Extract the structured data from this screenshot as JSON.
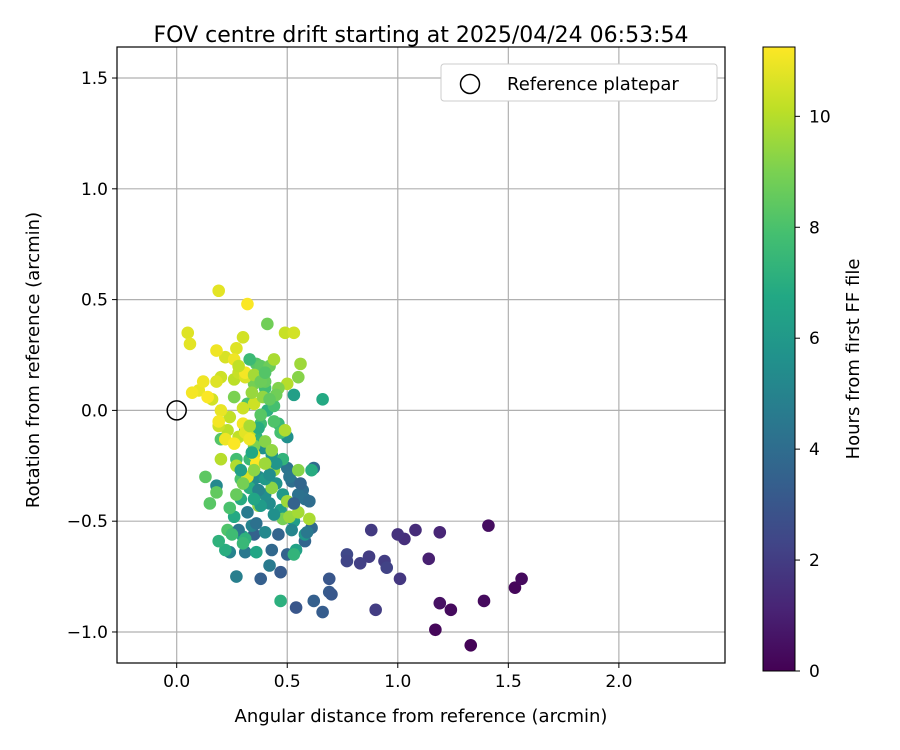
{
  "chart_data": {
    "type": "scatter",
    "title": "FOV centre drift starting at 2025/04/24 06:53:54",
    "xlabel": "Angular distance from reference (arcmin)",
    "ylabel": "Rotation from reference (arcmin)",
    "xlim": [
      -0.27,
      2.48
    ],
    "ylim": [
      -1.14,
      1.64
    ],
    "xticks": [
      0.0,
      0.5,
      1.0,
      1.5,
      2.0
    ],
    "xtick_labels": [
      "0.0",
      "0.5",
      "1.0",
      "1.5",
      "2.0"
    ],
    "yticks": [
      -1.0,
      -0.5,
      0.0,
      0.5,
      1.0,
      1.5
    ],
    "ytick_labels": [
      "−1.0",
      "−0.5",
      "0.0",
      "0.5",
      "1.0",
      "1.5"
    ],
    "grid": true,
    "legend": {
      "position": "top-right",
      "label": "Reference platepar",
      "marker": "open-circle"
    },
    "reference_point": {
      "x": 0.0,
      "y": 0.0
    },
    "colorbar": {
      "label": "Hours from first FF file",
      "range": [
        0,
        11.25
      ],
      "ticks": [
        0,
        2,
        4,
        6,
        8,
        10
      ],
      "tick_labels": [
        "0",
        "2",
        "4",
        "6",
        "8",
        "10"
      ],
      "colormap": "viridis"
    },
    "points": [
      [
        1.33,
        -1.06,
        0.1
      ],
      [
        1.17,
        -0.99,
        0.2
      ],
      [
        1.24,
        -0.9,
        0.3
      ],
      [
        1.19,
        -0.87,
        0.5
      ],
      [
        1.39,
        -0.86,
        0.3
      ],
      [
        1.53,
        -0.8,
        0.2
      ],
      [
        1.56,
        -0.76,
        0.3
      ],
      [
        1.41,
        -0.52,
        0.4
      ],
      [
        1.14,
        -0.67,
        1.0
      ],
      [
        1.19,
        -0.55,
        1.2
      ],
      [
        1.08,
        -0.54,
        1.4
      ],
      [
        1.03,
        -0.58,
        1.5
      ],
      [
        1.0,
        -0.56,
        1.6
      ],
      [
        1.01,
        -0.76,
        1.8
      ],
      [
        0.88,
        -0.54,
        1.9
      ],
      [
        0.94,
        -0.68,
        2.0
      ],
      [
        0.95,
        -0.71,
        2.2
      ],
      [
        0.87,
        -0.66,
        2.0
      ],
      [
        0.83,
        -0.69,
        2.1
      ],
      [
        0.77,
        -0.65,
        2.4
      ],
      [
        0.77,
        -0.68,
        2.3
      ],
      [
        0.9,
        -0.9,
        2.0
      ],
      [
        0.69,
        -0.76,
        3.0
      ],
      [
        0.69,
        -0.82,
        3.2
      ],
      [
        0.7,
        -0.83,
        3.1
      ],
      [
        0.62,
        -0.86,
        3.4
      ],
      [
        0.66,
        -0.91,
        3.3
      ],
      [
        0.54,
        -0.89,
        3.0
      ],
      [
        0.47,
        -0.73,
        3.2
      ],
      [
        0.38,
        -0.76,
        3.4
      ],
      [
        0.35,
        -0.56,
        3.5
      ],
      [
        0.5,
        -0.65,
        3.6
      ],
      [
        0.61,
        -0.53,
        3.8
      ],
      [
        0.58,
        -0.59,
        3.7
      ],
      [
        0.62,
        -0.26,
        3.9
      ],
      [
        0.57,
        -0.36,
        4.0
      ],
      [
        0.58,
        -0.4,
        4.2
      ],
      [
        0.52,
        -0.32,
        4.1
      ],
      [
        0.5,
        -0.26,
        4.3
      ],
      [
        0.51,
        -0.3,
        4.4
      ],
      [
        0.55,
        -0.38,
        4.2
      ],
      [
        0.42,
        -0.7,
        4.6
      ],
      [
        0.31,
        -0.64,
        4.5
      ],
      [
        0.27,
        -0.75,
        4.8
      ],
      [
        0.24,
        -0.64,
        5.0
      ],
      [
        0.18,
        -0.34,
        5.2
      ],
      [
        0.34,
        -0.52,
        5.0
      ],
      [
        0.4,
        -0.55,
        5.2
      ],
      [
        0.42,
        -0.42,
        5.4
      ],
      [
        0.4,
        -0.38,
        5.5
      ],
      [
        0.37,
        -0.3,
        5.3
      ],
      [
        0.39,
        -0.17,
        5.6
      ],
      [
        0.35,
        -0.31,
        5.4
      ],
      [
        0.43,
        -0.2,
        5.8
      ],
      [
        0.5,
        -0.12,
        5.6
      ],
      [
        0.45,
        -0.33,
        5.7
      ],
      [
        0.48,
        -0.38,
        6.0
      ],
      [
        0.53,
        -0.5,
        6.2
      ],
      [
        0.58,
        -0.56,
        5.9
      ],
      [
        0.54,
        -0.63,
        6.4
      ],
      [
        0.47,
        -0.45,
        6.2
      ],
      [
        0.36,
        -0.64,
        6.6
      ],
      [
        0.3,
        -0.57,
        6.5
      ],
      [
        0.26,
        -0.48,
        6.8
      ],
      [
        0.29,
        -0.4,
        6.9
      ],
      [
        0.33,
        -0.35,
        7.0
      ],
      [
        0.22,
        -0.63,
        7.0
      ],
      [
        0.19,
        -0.59,
        7.2
      ],
      [
        0.47,
        -0.86,
        7.1
      ],
      [
        0.53,
        -0.65,
        7.3
      ],
      [
        0.61,
        -0.27,
        6.9
      ],
      [
        0.53,
        0.07,
        6.3
      ],
      [
        0.66,
        0.05,
        6.8
      ],
      [
        0.41,
        0.0,
        7.1
      ],
      [
        0.36,
        -0.12,
        7.2
      ],
      [
        0.31,
        -0.09,
        7.4
      ],
      [
        0.46,
        -0.06,
        7.5
      ],
      [
        0.48,
        -0.22,
        7.3
      ],
      [
        0.33,
        -0.22,
        7.6
      ],
      [
        0.38,
        -0.06,
        7.7
      ],
      [
        0.4,
        0.1,
        7.8
      ],
      [
        0.44,
        0.02,
        7.9
      ],
      [
        0.32,
        0.03,
        8.0
      ],
      [
        0.27,
        -0.22,
        7.8
      ],
      [
        0.29,
        -0.31,
        8.0
      ],
      [
        0.23,
        -0.54,
        8.1
      ],
      [
        0.2,
        -0.13,
        8.2
      ],
      [
        0.15,
        -0.42,
        8.3
      ],
      [
        0.13,
        -0.3,
        8.4
      ],
      [
        0.18,
        -0.37,
        8.5
      ],
      [
        0.36,
        0.21,
        8.2
      ],
      [
        0.38,
        0.2,
        8.4
      ],
      [
        0.4,
        0.13,
        8.6
      ],
      [
        0.42,
        0.2,
        8.7
      ],
      [
        0.41,
        0.39,
        8.8
      ],
      [
        0.35,
        0.12,
        8.9
      ],
      [
        0.26,
        0.06,
        9.0
      ],
      [
        0.32,
        -0.07,
        9.1
      ],
      [
        0.35,
        -0.16,
        9.0
      ],
      [
        0.4,
        -0.14,
        9.2
      ],
      [
        0.43,
        -0.35,
        9.3
      ],
      [
        0.37,
        -0.43,
        9.4
      ],
      [
        0.48,
        -0.49,
        8.9
      ],
      [
        0.55,
        -0.27,
        9.2
      ],
      [
        0.44,
        -0.27,
        9.5
      ],
      [
        0.5,
        -0.41,
        9.6
      ],
      [
        0.51,
        -0.48,
        9.5
      ],
      [
        0.6,
        -0.49,
        9.8
      ],
      [
        0.55,
        -0.46,
        9.7
      ],
      [
        0.27,
        -0.25,
        9.9
      ],
      [
        0.2,
        -0.22,
        10.0
      ],
      [
        0.23,
        -0.09,
        10.1
      ],
      [
        0.28,
        -0.12,
        10.2
      ],
      [
        0.33,
        -0.1,
        10.3
      ],
      [
        0.24,
        -0.03,
        10.2
      ],
      [
        0.19,
        -0.07,
        10.4
      ],
      [
        0.16,
        0.05,
        10.5
      ],
      [
        0.26,
        0.14,
        10.1
      ],
      [
        0.28,
        0.17,
        10.3
      ],
      [
        0.31,
        0.15,
        10.6
      ],
      [
        0.35,
        0.03,
        10.4
      ],
      [
        0.44,
        0.23,
        9.8
      ],
      [
        0.5,
        0.12,
        10.0
      ],
      [
        0.55,
        0.15,
        9.2
      ],
      [
        0.56,
        0.21,
        9.6
      ],
      [
        0.49,
        0.35,
        10.3
      ],
      [
        0.53,
        0.35,
        10.5
      ],
      [
        0.3,
        0.33,
        10.5
      ],
      [
        0.27,
        0.28,
        10.7
      ],
      [
        0.22,
        0.24,
        10.6
      ],
      [
        0.2,
        0.15,
        10.4
      ],
      [
        0.18,
        0.13,
        10.7
      ],
      [
        0.05,
        0.35,
        10.7
      ],
      [
        0.06,
        0.3,
        10.8
      ],
      [
        0.18,
        0.27,
        11.0
      ],
      [
        0.19,
        0.54,
        10.8
      ],
      [
        0.32,
        0.48,
        11.2
      ],
      [
        0.1,
        0.09,
        10.9
      ],
      [
        0.07,
        0.08,
        11.1
      ],
      [
        0.12,
        0.13,
        11.0
      ],
      [
        0.14,
        0.06,
        11.2
      ],
      [
        0.2,
        0.0,
        10.9
      ],
      [
        0.19,
        -0.05,
        11.1
      ],
      [
        0.22,
        -0.13,
        11.0
      ],
      [
        0.26,
        -0.15,
        11.2
      ],
      [
        0.3,
        -0.06,
        11.1
      ],
      [
        0.31,
        -0.1,
        10.8
      ],
      [
        0.33,
        -0.13,
        11.0
      ],
      [
        0.35,
        -0.2,
        10.9
      ],
      [
        0.36,
        -0.24,
        11.2
      ],
      [
        0.32,
        -0.3,
        10.6
      ],
      [
        0.26,
        0.23,
        11.0
      ],
      [
        0.31,
        0.17,
        11.1
      ],
      [
        0.28,
        0.2,
        10.2
      ],
      [
        0.35,
        0.16,
        9.7
      ],
      [
        0.39,
        0.06,
        9.4
      ],
      [
        0.46,
        0.1,
        9.1
      ],
      [
        0.45,
        0.07,
        8.8
      ],
      [
        0.42,
        0.05,
        8.5
      ],
      [
        0.38,
        -0.02,
        8.3
      ],
      [
        0.44,
        -0.05,
        8.1
      ],
      [
        0.47,
        -0.1,
        7.9
      ],
      [
        0.49,
        -0.09,
        9.9
      ],
      [
        0.37,
        -0.08,
        7.0
      ],
      [
        0.34,
        -0.19,
        6.7
      ],
      [
        0.29,
        -0.27,
        6.3
      ],
      [
        0.4,
        -0.31,
        6.0
      ],
      [
        0.45,
        -0.24,
        5.8
      ],
      [
        0.42,
        -0.29,
        5.5
      ],
      [
        0.37,
        -0.36,
        5.0
      ],
      [
        0.32,
        -0.46,
        4.6
      ],
      [
        0.28,
        -0.54,
        4.4
      ],
      [
        0.36,
        -0.51,
        4.2
      ],
      [
        0.43,
        -0.63,
        3.8
      ],
      [
        0.46,
        -0.56,
        3.6
      ],
      [
        0.53,
        -0.42,
        3.5
      ],
      [
        0.56,
        -0.33,
        3.7
      ],
      [
        0.6,
        -0.41,
        4.0
      ],
      [
        0.59,
        -0.55,
        4.5
      ],
      [
        0.52,
        -0.54,
        5.1
      ],
      [
        0.44,
        -0.47,
        5.6
      ],
      [
        0.38,
        -0.43,
        6.1
      ],
      [
        0.35,
        -0.4,
        6.6
      ],
      [
        0.31,
        -0.58,
        7.2
      ],
      [
        0.3,
        -0.6,
        7.5
      ],
      [
        0.25,
        -0.56,
        7.7
      ],
      [
        0.24,
        -0.44,
        8.0
      ],
      [
        0.27,
        -0.38,
        8.6
      ],
      [
        0.3,
        -0.33,
        8.9
      ],
      [
        0.35,
        -0.27,
        9.3
      ],
      [
        0.4,
        -0.24,
        9.6
      ],
      [
        0.43,
        -0.18,
        9.4
      ],
      [
        0.33,
        -0.07,
        9.8
      ],
      [
        0.3,
        0.01,
        10.4
      ],
      [
        0.34,
        0.08,
        9.5
      ],
      [
        0.38,
        0.13,
        8.7
      ],
      [
        0.4,
        0.17,
        8.2
      ],
      [
        0.33,
        0.23,
        7.6
      ]
    ]
  }
}
